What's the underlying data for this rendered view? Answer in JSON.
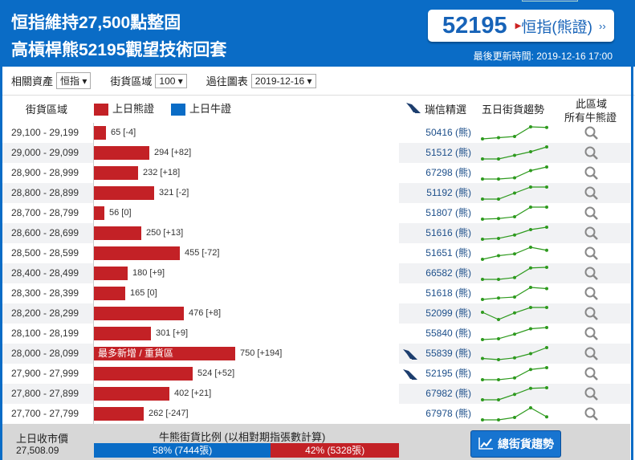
{
  "header": {
    "title_line1": "恒指維持27,500點整固",
    "title_line2": "高槓桿熊52195觀望技術回套",
    "featured_code": "52195",
    "featured_label": "恒指(熊證)",
    "featured_chev": "››",
    "updated": "最後更新時間: 2019-12-16 17:00"
  },
  "filters": {
    "asset_label": "相關資產",
    "asset_value": "恒指 ▾",
    "zone_label": "街貨區域",
    "zone_value": "100 ▾",
    "history_label": "過往圖表",
    "history_value": "2019-12-16 ▾"
  },
  "columns": {
    "range": "街貨區域",
    "bear_legend": "上日熊證",
    "bull_legend": "上日牛證",
    "ubs": "瑞信精選",
    "trend": "五日街貨趨勢",
    "all_line1": "此區域",
    "all_line2": "所有牛熊證"
  },
  "colors": {
    "bear": "#c32126",
    "bull": "#0a6cc6",
    "spark": "#2e9a1e"
  },
  "rows": [
    {
      "range": "29,100 - 29,199",
      "qty": 65,
      "label": "65 [-4]",
      "code": "50416 (熊)",
      "ubs": false,
      "trend": [
        0,
        0.1,
        0.2,
        1,
        0.95
      ]
    },
    {
      "range": "29,000 - 29,099",
      "qty": 294,
      "label": "294 [+82]",
      "code": "51512 (熊)",
      "ubs": false,
      "trend": [
        0,
        0,
        0.3,
        0.6,
        1
      ]
    },
    {
      "range": "28,900 - 28,999",
      "qty": 232,
      "label": "232 [+18]",
      "code": "67298 (熊)",
      "ubs": false,
      "trend": [
        0,
        0,
        0.1,
        0.7,
        1
      ]
    },
    {
      "range": "28,800 - 28,899",
      "qty": 321,
      "label": "321 [-2]",
      "code": "51192 (熊)",
      "ubs": false,
      "trend": [
        0,
        0,
        0.5,
        1,
        1
      ]
    },
    {
      "range": "28,700 - 28,799",
      "qty": 56,
      "label": "56 [0]",
      "code": "51807 (熊)",
      "ubs": false,
      "trend": [
        0,
        0.05,
        0.2,
        1,
        1
      ]
    },
    {
      "range": "28,600 - 28,699",
      "qty": 250,
      "label": "250 [+13]",
      "code": "51616 (熊)",
      "ubs": false,
      "trend": [
        0,
        0.07,
        0.35,
        0.8,
        1
      ]
    },
    {
      "range": "28,500 - 28,599",
      "qty": 455,
      "label": "455 [-72]",
      "code": "51651 (熊)",
      "ubs": false,
      "trend": [
        0,
        0.3,
        0.45,
        1,
        0.75
      ]
    },
    {
      "range": "28,400 - 28,499",
      "qty": 180,
      "label": "180 [+9]",
      "code": "66582 (熊)",
      "ubs": false,
      "trend": [
        0,
        0,
        0.15,
        0.95,
        1
      ]
    },
    {
      "range": "28,300 - 28,399",
      "qty": 165,
      "label": "165 [0]",
      "code": "51618 (熊)",
      "ubs": false,
      "trend": [
        0,
        0.12,
        0.2,
        1,
        0.9
      ]
    },
    {
      "range": "28,200 - 28,299",
      "qty": 476,
      "label": "476 [+8]",
      "code": "52099 (熊)",
      "ubs": false,
      "trend": [
        0.6,
        0,
        0.55,
        1,
        1
      ]
    },
    {
      "range": "28,100 - 28,199",
      "qty": 301,
      "label": "301 [+9]",
      "code": "55840 (熊)",
      "ubs": false,
      "trend": [
        0,
        0.07,
        0.45,
        0.9,
        1
      ]
    },
    {
      "range": "28,000 - 28,099",
      "qty": 750,
      "label": "750 [+194]",
      "bar_text": "最多新增 / 重貨區",
      "code": "55839 (熊)",
      "ubs": true,
      "trend": [
        0.1,
        0,
        0.15,
        0.5,
        1
      ]
    },
    {
      "range": "27,900 - 27,999",
      "qty": 524,
      "label": "524 [+52]",
      "code": "52195 (熊)",
      "ubs": true,
      "trend": [
        0,
        0,
        0.15,
        0.85,
        1
      ]
    },
    {
      "range": "27,800 - 27,899",
      "qty": 402,
      "label": "402 [+21]",
      "code": "67982 (熊)",
      "ubs": false,
      "trend": [
        0,
        0,
        0.45,
        0.95,
        1
      ]
    },
    {
      "range": "27,700 - 27,799",
      "qty": 262,
      "label": "262 [-247]",
      "code": "67978 (熊)",
      "ubs": false,
      "trend": [
        0,
        0,
        0.2,
        1,
        0.25
      ]
    }
  ],
  "footer": {
    "close_label": "上日收市價",
    "close_value": "27,508.09",
    "ratio_title": "牛熊街貨比例 (以相對期指張數計算)",
    "bull_pct": 58,
    "bull_text": "58% (7444張)",
    "bear_pct": 42,
    "bear_text": "42% (5328張)",
    "trend_button": "總街貨趨勢"
  }
}
